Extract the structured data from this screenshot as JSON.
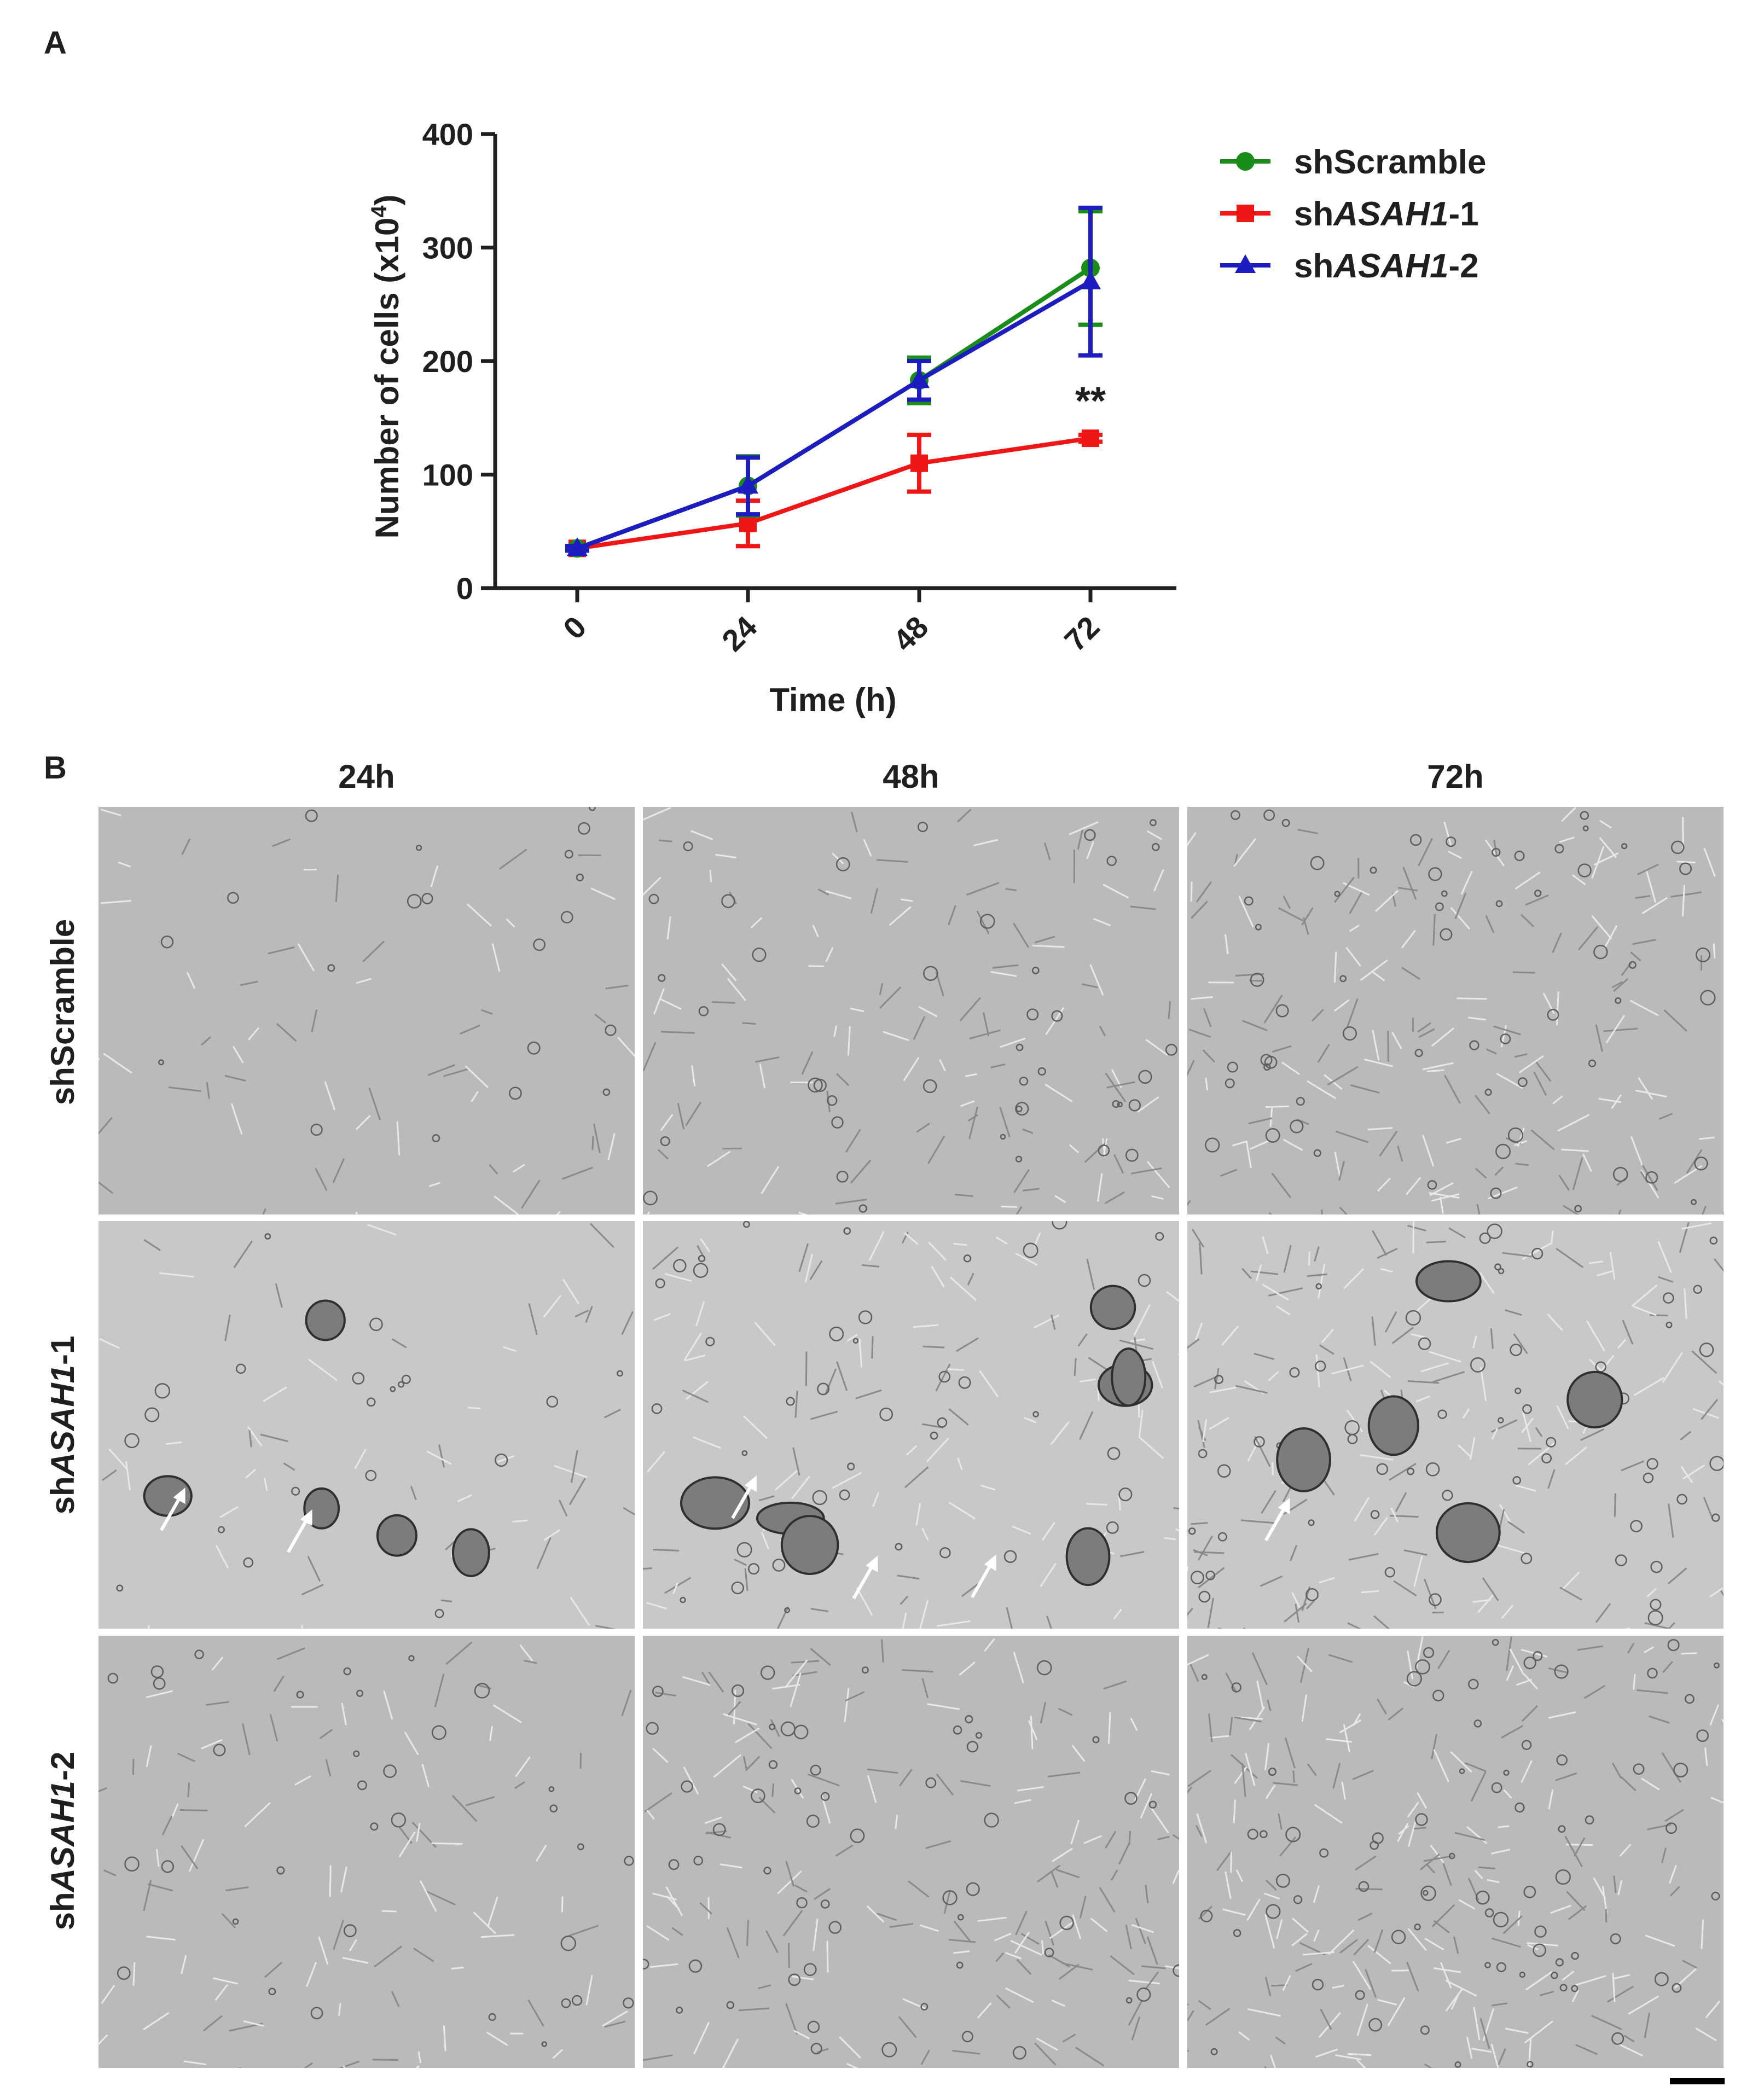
{
  "panels": {
    "a": "A",
    "b": "B"
  },
  "chart_data": {
    "type": "line",
    "title": "",
    "ylabel": "Number of cells (x10",
    "ylabel_exp": "4",
    "ylabel_close": ")",
    "xlabel": "Time (h)",
    "x": [
      0,
      24,
      48,
      72
    ],
    "x_tick_labels": [
      "0",
      "24",
      "48",
      "72"
    ],
    "ylim": [
      0,
      400
    ],
    "y_ticks": [
      0,
      100,
      200,
      300,
      400
    ],
    "y_tick_labels": [
      "0",
      "100",
      "200",
      "300",
      "400"
    ],
    "grid": false,
    "legend_position": "top-right",
    "series": [
      {
        "name": "shScramble",
        "name_prefix": "shScramble",
        "name_italic": "",
        "name_suffix": "",
        "color": "#1a8c1a",
        "marker": "circle",
        "values": [
          35,
          90,
          183,
          282
        ],
        "errors": [
          2,
          26,
          20,
          50
        ]
      },
      {
        "name": "shASAH1-1",
        "name_prefix": "sh",
        "name_italic": "ASAH1",
        "name_suffix": "-1",
        "color": "#f01616",
        "marker": "square",
        "values": [
          35,
          57,
          110,
          132
        ],
        "errors": [
          2,
          20,
          25,
          3
        ]
      },
      {
        "name": "shASAH1-2",
        "name_prefix": "sh",
        "name_italic": "ASAH1",
        "name_suffix": "-2",
        "color": "#1c1cc0",
        "marker": "triangle",
        "values": [
          35,
          90,
          183,
          270
        ],
        "errors": [
          2,
          25,
          17,
          65
        ]
      }
    ],
    "annotations": [
      {
        "x": 72,
        "text": "**",
        "y_value": 165
      }
    ]
  },
  "microscopy": {
    "columns": [
      "24h",
      "48h",
      "72h"
    ],
    "rows": [
      {
        "prefix": "shScramble",
        "italic": "",
        "suffix": ""
      },
      {
        "prefix": "sh",
        "italic": "ASAH1",
        "suffix": "-1"
      },
      {
        "prefix": "sh",
        "italic": "ASAH1",
        "suffix": "-2"
      }
    ],
    "arrows_per_panel": [
      [
        0,
        0,
        0
      ],
      [
        2,
        3,
        1
      ],
      [
        0,
        0,
        0
      ]
    ]
  }
}
